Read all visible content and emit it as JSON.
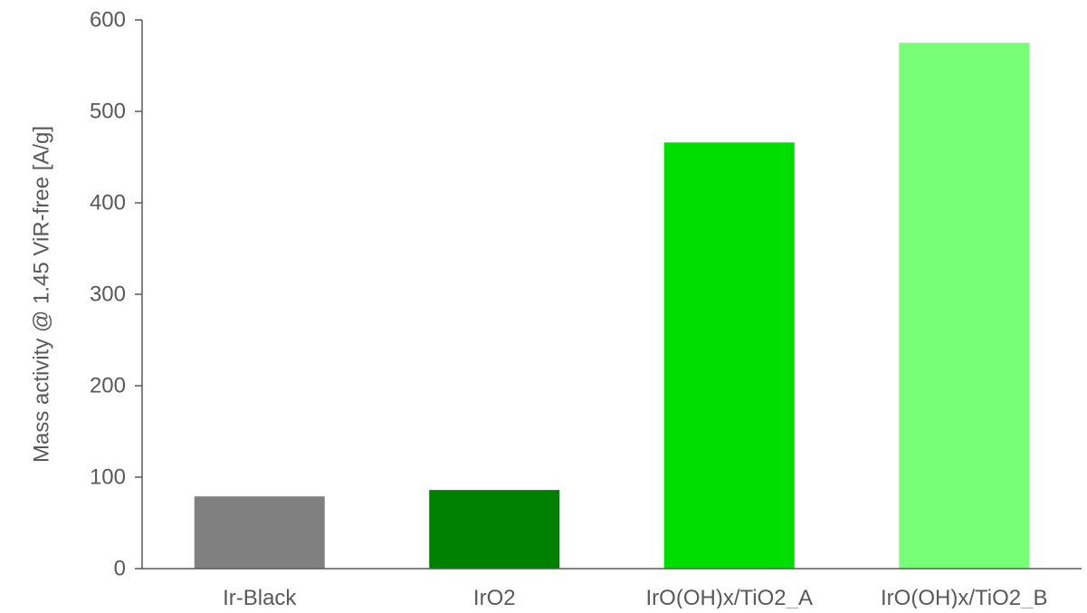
{
  "chart_data": {
    "type": "bar",
    "title": "",
    "xlabel": "",
    "ylabel": "Mass activity @ 1.45 ViR-free [A/g]",
    "categories": [
      "Ir-Black",
      "IrO2",
      "IrO(OH)x/TiO2_A",
      "IrO(OH)x/TiO2_B"
    ],
    "values": [
      79,
      86,
      466,
      575
    ],
    "bar_colors": [
      "#808080",
      "#008000",
      "#00DD00",
      "#77FF77"
    ],
    "ylim": [
      0,
      600
    ],
    "yticks": [
      0,
      100,
      200,
      300,
      400,
      500,
      600
    ],
    "grid": false,
    "legend": "none",
    "axis_color": "#595959",
    "tick_label_color": "#595959"
  }
}
